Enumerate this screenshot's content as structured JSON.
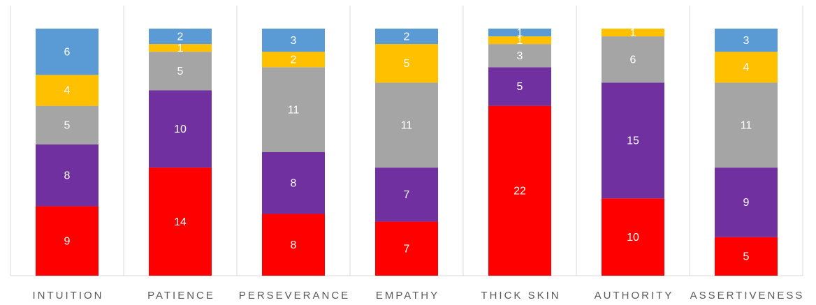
{
  "chart_data": {
    "type": "stacked_bar",
    "categories": [
      "INTUITION",
      "PATIENCE",
      "PERSEVERANCE",
      "EMPATHY",
      "THICK SKIN",
      "AUTHORITY",
      "ASSERTIVENESS"
    ],
    "series": [
      {
        "color": "#ff0000",
        "values": [
          9,
          14,
          8,
          7,
          22,
          10,
          5
        ]
      },
      {
        "color": "#7030a0",
        "values": [
          8,
          10,
          8,
          7,
          5,
          15,
          9
        ]
      },
      {
        "color": "#a5a5a5",
        "values": [
          5,
          5,
          11,
          11,
          3,
          6,
          11
        ]
      },
      {
        "color": "#ffc000",
        "values": [
          4,
          1,
          2,
          5,
          1,
          1,
          4
        ]
      },
      {
        "color": "#5b9bd5",
        "values": [
          6,
          2,
          3,
          2,
          1,
          null,
          3
        ]
      }
    ],
    "ylim": [
      0,
      32
    ]
  }
}
